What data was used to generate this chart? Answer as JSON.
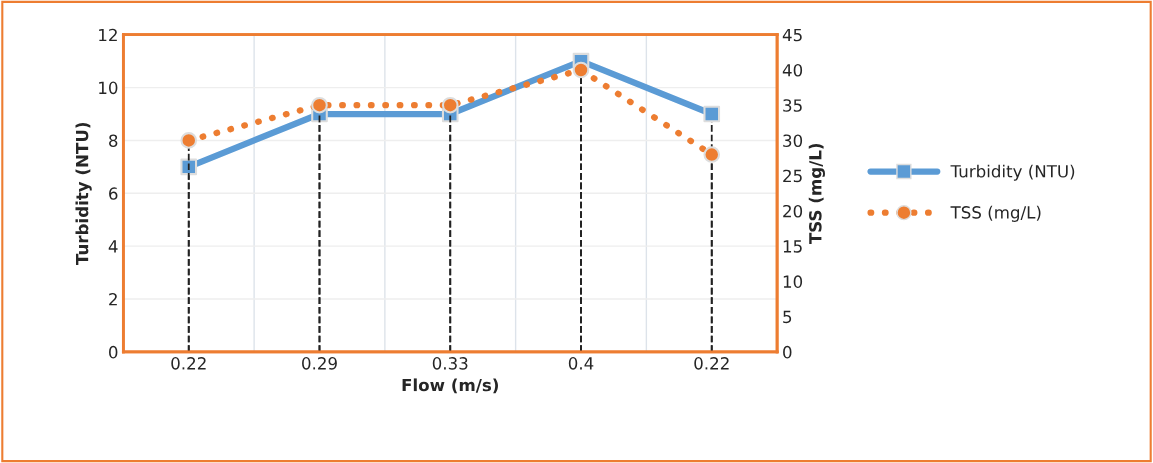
{
  "chart_data": {
    "type": "line",
    "xlabel": "Flow (m/s)",
    "ylabel": "Turbidity (NTU)",
    "y2label": "TSS (mg/L)",
    "categories": [
      "0.22",
      "0.29",
      "0.33",
      "0.4",
      "0.22"
    ],
    "series": [
      {
        "name": "Turbidity (NTU)",
        "color": "#5b9bd5",
        "values": [
          7,
          9,
          9,
          11,
          9
        ],
        "marker": "square",
        "line_style": "solid"
      },
      {
        "name": "TSS (mg/L)",
        "color": "#ed7d31",
        "values": [
          30,
          35,
          35,
          40,
          28
        ],
        "marker": "circle",
        "line_style": "dotted",
        "axis": "y2"
      }
    ],
    "ylim": [
      0,
      12
    ],
    "yticks": [
      0,
      2,
      4,
      6,
      8,
      10,
      12
    ],
    "y2lim": [
      0,
      45
    ],
    "y2ticks": [
      0,
      5,
      10,
      15,
      20,
      25,
      30,
      35,
      40,
      45
    ],
    "grid": true,
    "legend": "right"
  }
}
